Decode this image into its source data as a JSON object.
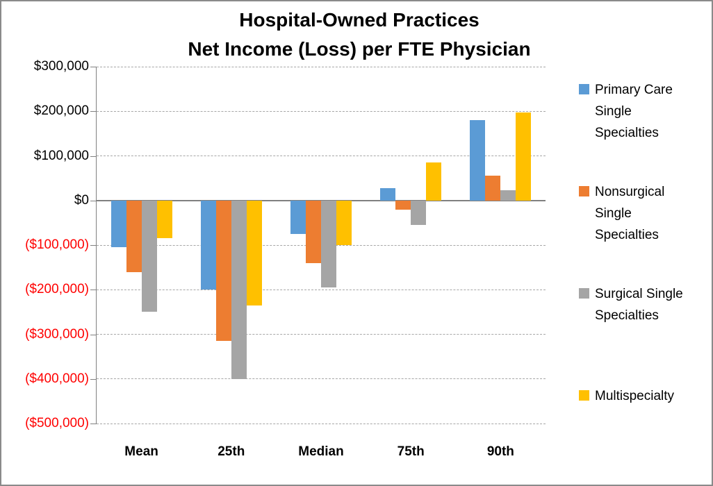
{
  "title": {
    "line1": "Hospital-Owned Practices",
    "line2": "Net Income (Loss) per FTE Physician"
  },
  "chart_data": {
    "type": "bar",
    "title": "Hospital-Owned Practices Net Income (Loss) per FTE Physician",
    "categories": [
      "Mean",
      "25th",
      "Median",
      "75th",
      "90th"
    ],
    "series": [
      {
        "name": "Primary Care Single Specialties",
        "color": "#5B9BD5",
        "values": [
          -105000,
          -200000,
          -75000,
          28000,
          180000
        ]
      },
      {
        "name": "Nonsurgical Single Specialties",
        "color": "#ED7D31",
        "values": [
          -160000,
          -315000,
          -140000,
          -20000,
          55000
        ]
      },
      {
        "name": "Surgical Single Specialties",
        "color": "#A5A5A5",
        "values": [
          -250000,
          -400000,
          -195000,
          -55000,
          23000
        ]
      },
      {
        "name": "Multispecialty",
        "color": "#FFC000",
        "values": [
          -85000,
          -235000,
          -100000,
          85000,
          198000
        ]
      }
    ],
    "y_axis": {
      "max": 300000,
      "min": -500000,
      "step": 100000,
      "tick_labels": [
        "$300,000",
        "$200,000",
        "$100,000",
        "$0",
        "($100,000)",
        "($200,000)",
        "($300,000)",
        "($400,000)",
        "($500,000)"
      ],
      "positive_label_color": "#000000",
      "negative_label_color": "#FF0000"
    },
    "xlabel": "",
    "ylabel": "",
    "grid": true,
    "legend_position": "right"
  }
}
